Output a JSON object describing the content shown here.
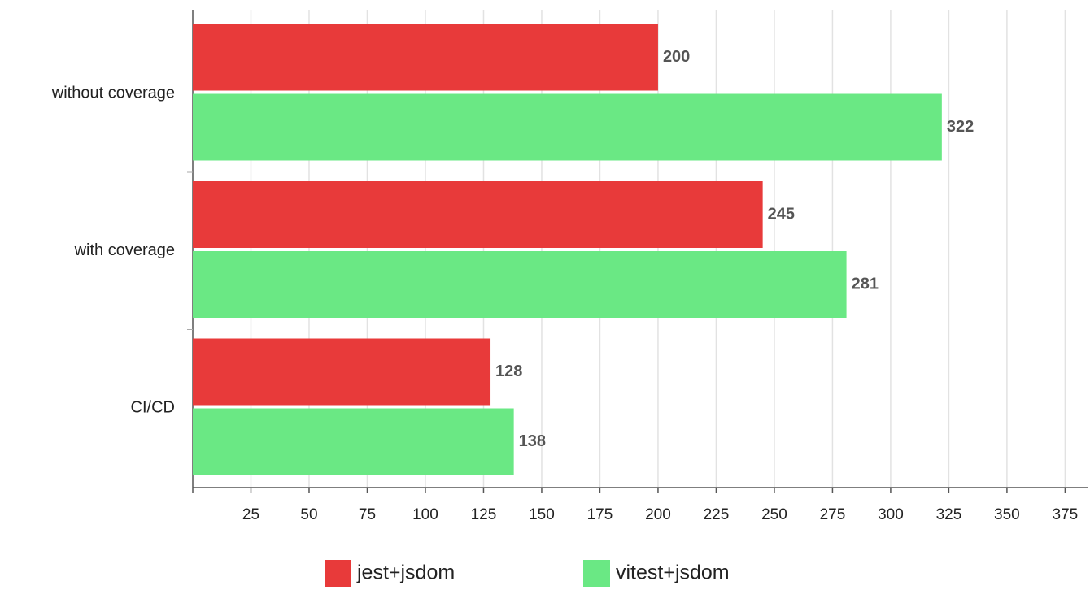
{
  "chart_data": {
    "type": "hbar",
    "categories": [
      "without coverage",
      "with coverage",
      "CI/CD"
    ],
    "series": [
      {
        "name": "jest+jsdom",
        "color": "#e83a3a",
        "values": [
          200,
          245,
          128
        ]
      },
      {
        "name": "vitest+jsdom",
        "color": "#6ae884",
        "values": [
          322,
          281,
          138
        ]
      }
    ],
    "xlim": [
      0,
      385
    ],
    "xticks": [
      25,
      50,
      75,
      100,
      125,
      150,
      175,
      200,
      225,
      250,
      275,
      300,
      325,
      350,
      375
    ],
    "grid": true,
    "legend": "bottom"
  }
}
